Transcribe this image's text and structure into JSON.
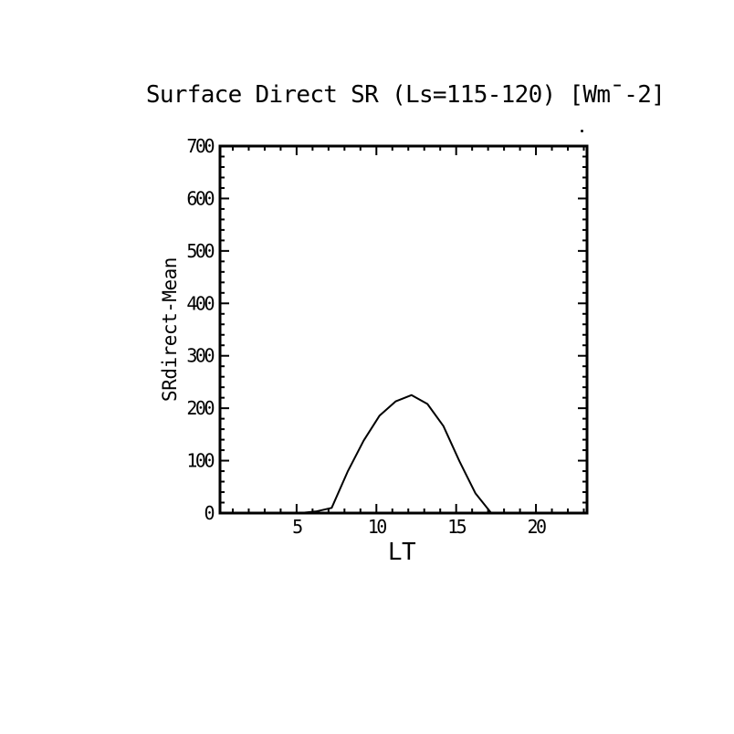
{
  "title": "Surface Direct SR (Ls=115-120) [Wm¯-2]",
  "colors": {
    "background": "#ffffff",
    "frame": "#000000",
    "line": "#000000",
    "text": "#000000"
  },
  "chart_data": {
    "type": "line",
    "title": "Surface Direct SR (Ls=115-120) [Wm¯-2]",
    "xlabel": "LT",
    "ylabel": "SRdirect-Mean",
    "xlim": [
      0.2,
      23.2
    ],
    "ylim": [
      0,
      700
    ],
    "x_major_ticks": [
      5,
      10,
      15,
      20
    ],
    "y_major_ticks": [
      0,
      100,
      200,
      300,
      400,
      500,
      600,
      700
    ],
    "x_minor_step": 1,
    "y_minor_step": 20,
    "grid": false,
    "legend": "none",
    "ticks": "inward-all-four-sides",
    "x": [
      0.2,
      1.2,
      2.2,
      3.2,
      4.2,
      5.2,
      6.2,
      7.2,
      8.2,
      9.2,
      10.2,
      11.2,
      12.2,
      13.2,
      14.2,
      15.2,
      16.2,
      17.2,
      18.2,
      19.2,
      20.2,
      21.2,
      22.2,
      23.2
    ],
    "y": [
      0,
      0,
      0,
      0,
      0,
      0,
      3,
      10,
      79,
      138,
      186,
      213,
      225,
      208,
      166,
      99,
      38,
      0,
      0,
      0,
      0,
      0,
      0,
      0
    ]
  }
}
